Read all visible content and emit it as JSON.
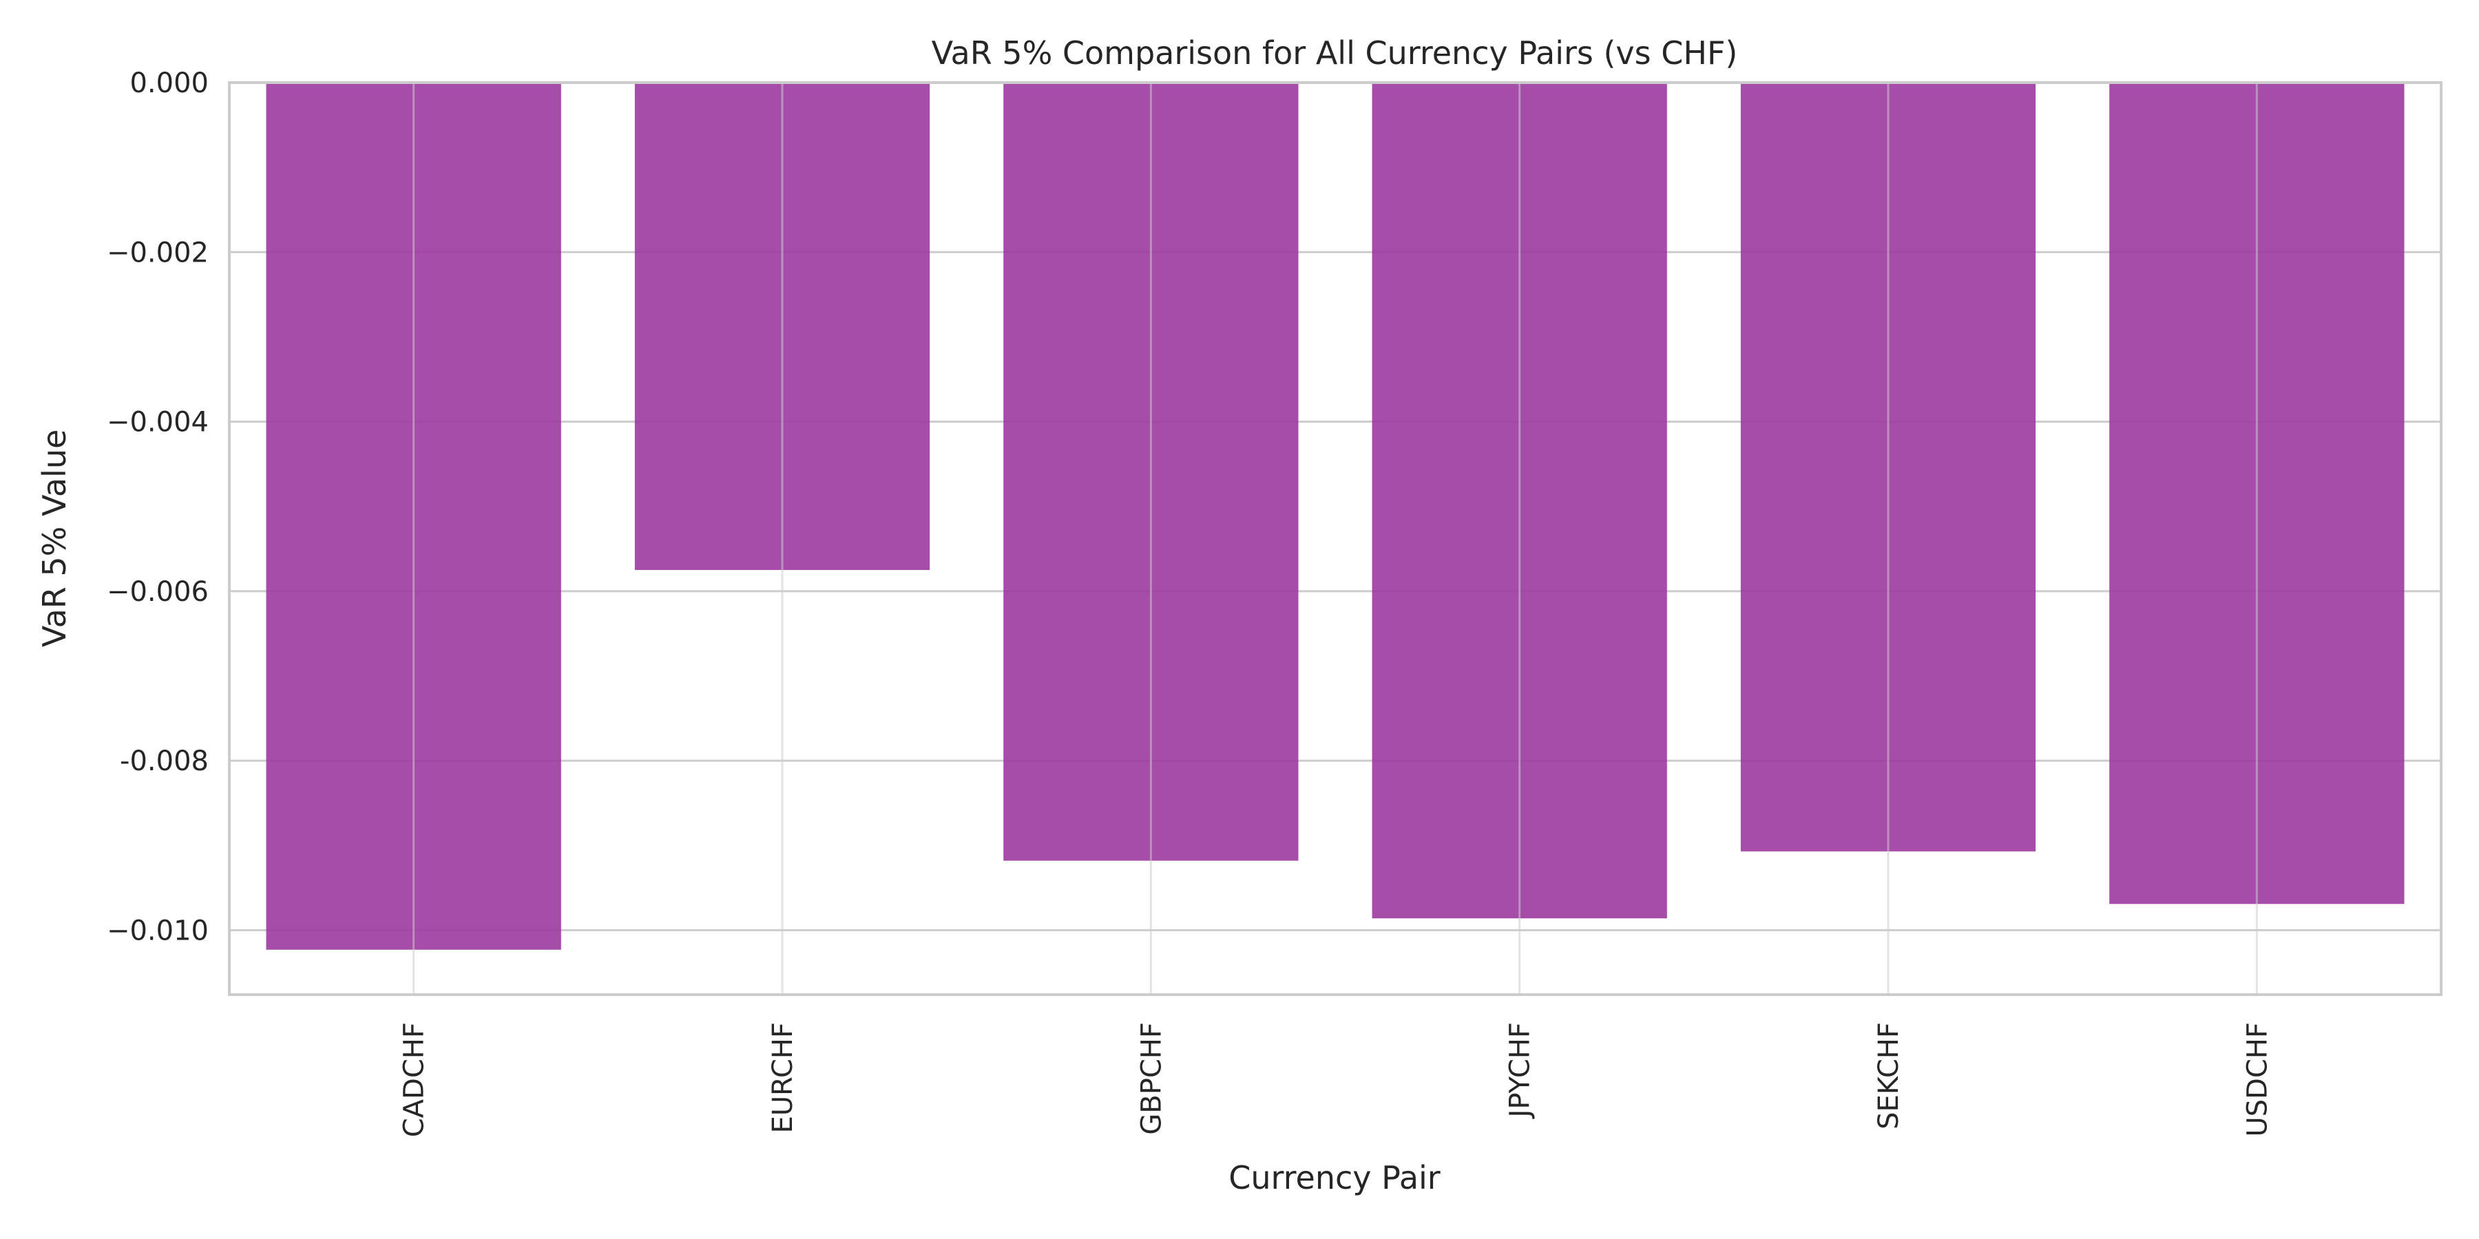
{
  "chart_data": {
    "type": "bar",
    "title": "VaR 5% Comparison for All Currency Pairs (vs CHF)",
    "xlabel": "Currency Pair",
    "ylabel": "VaR 5% Value",
    "categories": [
      "CADCHF",
      "EURCHF",
      "GBPCHF",
      "JPYCHF",
      "SEKCHF",
      "USDCHF"
    ],
    "values": [
      -0.01023,
      -0.00575,
      -0.00918,
      -0.00986,
      -0.00907,
      -0.00969
    ],
    "ylim": [
      -0.01076,
      0.0
    ],
    "yticks": [
      0.0,
      -0.002,
      -0.004,
      -0.006,
      -0.008,
      -0.01
    ],
    "ytick_labels": [
      "0.000",
      "−0.002",
      "−0.004",
      "−0.006",
      "-0.008",
      "−0.010"
    ],
    "grid": true,
    "colors": {
      "bar": "#9b3a9f",
      "grid": "#cccccc",
      "spine": "#cccccc",
      "text": "#262626",
      "background": "#ffffff"
    }
  }
}
